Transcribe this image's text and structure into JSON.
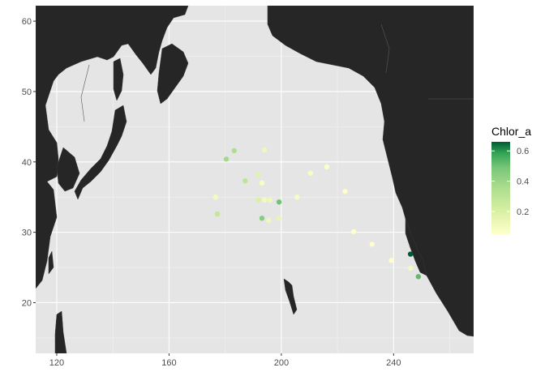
{
  "chart_data": {
    "type": "scatter",
    "title": "",
    "xlabel": "",
    "ylabel": "",
    "xlim": [
      112.5,
      268.5
    ],
    "ylim": [
      12.8,
      62.2
    ],
    "x_ticks": [
      120,
      160,
      200,
      240
    ],
    "y_ticks": [
      20,
      30,
      40,
      50,
      60
    ],
    "grid": true,
    "colors": {
      "panel": "#e5e5e5",
      "land": "#262626",
      "grid_major": "#ffffff",
      "grid_minor": "#f2f2f2",
      "low": "#ffffcc",
      "mid": "#78c679",
      "high": "#005a32"
    },
    "legend": {
      "title": "Chlor_a",
      "position": "right",
      "range": [
        0.05,
        0.66
      ],
      "ticks": [
        0.2,
        0.4,
        0.6
      ],
      "tick_labels": [
        "0.2",
        "0.4",
        "0.6"
      ]
    },
    "points": [
      {
        "lon": 183.2,
        "lat": 41.6,
        "chlor_a": 0.35
      },
      {
        "lon": 180.4,
        "lat": 40.4,
        "chlor_a": 0.38
      },
      {
        "lon": 194.0,
        "lat": 41.7,
        "chlor_a": 0.12
      },
      {
        "lon": 176.6,
        "lat": 35.0,
        "chlor_a": 0.1
      },
      {
        "lon": 177.2,
        "lat": 32.6,
        "chlor_a": 0.28
      },
      {
        "lon": 187.1,
        "lat": 37.3,
        "chlor_a": 0.3
      },
      {
        "lon": 191.8,
        "lat": 38.2,
        "chlor_a": 0.18
      },
      {
        "lon": 193.1,
        "lat": 37.0,
        "chlor_a": 0.08
      },
      {
        "lon": 191.8,
        "lat": 34.6,
        "chlor_a": 0.2
      },
      {
        "lon": 194.0,
        "lat": 34.6,
        "chlor_a": 0.1
      },
      {
        "lon": 196.0,
        "lat": 34.6,
        "chlor_a": 0.12
      },
      {
        "lon": 199.2,
        "lat": 34.3,
        "chlor_a": 0.5
      },
      {
        "lon": 193.1,
        "lat": 32.0,
        "chlor_a": 0.45
      },
      {
        "lon": 195.5,
        "lat": 31.7,
        "chlor_a": 0.12
      },
      {
        "lon": 199.1,
        "lat": 32.0,
        "chlor_a": 0.15
      },
      {
        "lon": 205.6,
        "lat": 35.0,
        "chlor_a": 0.08
      },
      {
        "lon": 210.4,
        "lat": 38.4,
        "chlor_a": 0.08
      },
      {
        "lon": 216.2,
        "lat": 39.3,
        "chlor_a": 0.06
      },
      {
        "lon": 222.7,
        "lat": 35.8,
        "chlor_a": 0.06
      },
      {
        "lon": 225.8,
        "lat": 30.1,
        "chlor_a": 0.06
      },
      {
        "lon": 232.3,
        "lat": 28.3,
        "chlor_a": 0.06
      },
      {
        "lon": 239.2,
        "lat": 26.0,
        "chlor_a": 0.06
      },
      {
        "lon": 246.0,
        "lat": 26.9,
        "chlor_a": 0.66
      },
      {
        "lon": 246.0,
        "lat": 24.9,
        "chlor_a": 0.1
      },
      {
        "lon": 248.8,
        "lat": 23.7,
        "chlor_a": 0.52
      }
    ]
  }
}
